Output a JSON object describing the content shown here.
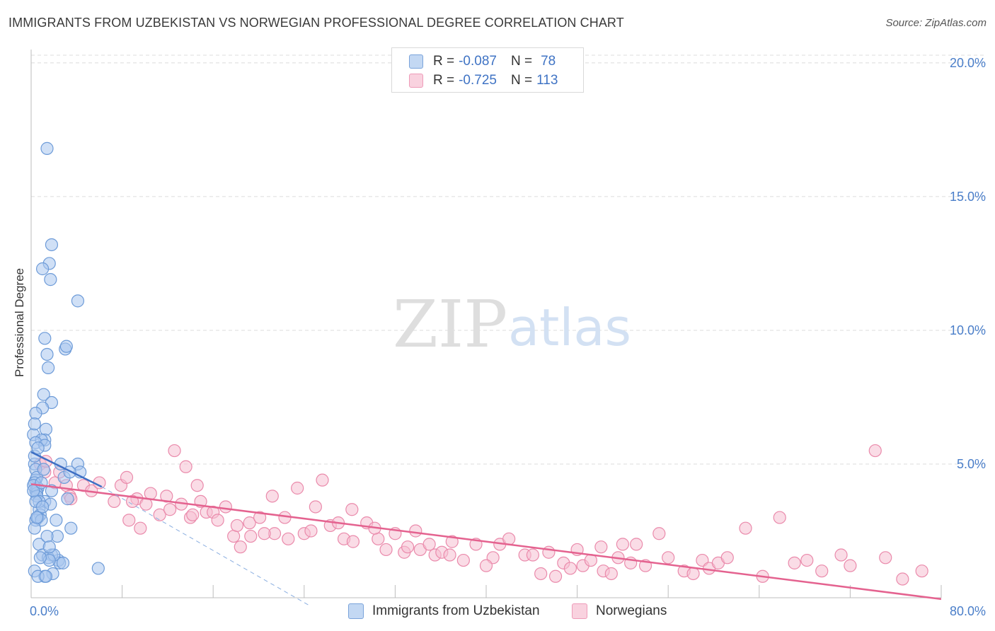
{
  "header": {
    "title": "IMMIGRANTS FROM UZBEKISTAN VS NORWEGIAN PROFESSIONAL DEGREE CORRELATION CHART",
    "source": "Source: ZipAtlas.com"
  },
  "watermark": {
    "zip": "ZIP",
    "atlas": "atlas"
  },
  "legend": {
    "rows": [
      {
        "r_label": "R =",
        "r_value": "-0.087",
        "n_label": "N =",
        "n_value": "78",
        "color": "#8fb5e6"
      },
      {
        "r_label": "R =",
        "r_value": "-0.725",
        "n_label": "N =",
        "n_value": "113",
        "color": "#f2a6bf"
      }
    ]
  },
  "colors": {
    "blue_fill": "#a9c6ee",
    "blue_stroke": "#6d9bd8",
    "blue_line": "#3d6fc4",
    "pink_fill": "#f6bfd1",
    "pink_stroke": "#ea8aab",
    "pink_line": "#e4628f",
    "grid": "#dcdcdc",
    "tick_text": "#4a7ec9"
  },
  "chart_data": {
    "type": "scatter",
    "title": "IMMIGRANTS FROM UZBEKISTAN VS NORWEGIAN PROFESSIONAL DEGREE CORRELATION CHART",
    "xlabel": "",
    "ylabel": "Professional Degree",
    "xlim": [
      0,
      80
    ],
    "ylim": [
      0,
      20.5
    ],
    "x_tick_labels": [
      "0.0%",
      "80.0%"
    ],
    "y_ticks": [
      5,
      10,
      15,
      20
    ],
    "y_tick_labels": [
      "5.0%",
      "10.0%",
      "15.0%",
      "20.0%"
    ],
    "grid": true,
    "series": [
      {
        "name": "Immigrants from Uzbekistan",
        "x": [
          1.4,
          1.8,
          1.6,
          1.0,
          1.7,
          4.1,
          1.2,
          1.4,
          3.0,
          3.1,
          1.5,
          1.1,
          1.8,
          1.0,
          0.4,
          1.3,
          1.2,
          0.2,
          0.9,
          0.3,
          0.4,
          1.2,
          0.3,
          0.4,
          0.4,
          0.5,
          4.1,
          4.3,
          0.3,
          2.6,
          2.9,
          3.4,
          0.4,
          0.5,
          0.6,
          1.8,
          0.5,
          3.2,
          1.2,
          1.7,
          0.7,
          0.8,
          0.4,
          0.6,
          0.9,
          2.2,
          3.5,
          5.9,
          2.3,
          0.7,
          1.0,
          2.4,
          2.5,
          1.8,
          1.5,
          2.0,
          1.9,
          2.8,
          1.6,
          1.2,
          0.3,
          0.8,
          0.6,
          1.3,
          0.2,
          0.5,
          0.7,
          0.4,
          0.2,
          0.9,
          1.1,
          0.3,
          0.6,
          1.0,
          1.4,
          1.6,
          0.3,
          0.5
        ],
        "y": [
          16.8,
          13.2,
          12.5,
          12.3,
          11.9,
          11.1,
          9.7,
          9.1,
          9.3,
          9.4,
          8.6,
          7.6,
          7.3,
          7.1,
          6.9,
          6.3,
          5.9,
          6.1,
          5.9,
          6.5,
          5.8,
          5.7,
          5.0,
          4.8,
          4.4,
          4.5,
          5.0,
          4.7,
          4.3,
          5.0,
          4.5,
          4.7,
          4.0,
          4.0,
          4.1,
          4.0,
          3.9,
          3.7,
          3.6,
          3.5,
          3.3,
          3.1,
          2.9,
          3.0,
          2.9,
          2.9,
          2.6,
          1.1,
          2.3,
          2.0,
          1.6,
          1.4,
          1.3,
          1.6,
          1.5,
          1.6,
          0.9,
          1.3,
          1.4,
          0.8,
          1.0,
          1.5,
          0.8,
          0.8,
          4.2,
          3.8,
          3.6,
          3.6,
          4.0,
          4.3,
          4.8,
          5.3,
          5.6,
          3.4,
          2.3,
          1.9,
          2.6,
          3.0
        ],
        "color": "#a9c6ee",
        "trendline": {
          "x": [
            0,
            6.2
          ],
          "y": [
            5.45,
            4.15
          ]
        },
        "trendline_extension": {
          "x": [
            6.2,
            24.5
          ],
          "y": [
            4.15,
            -0.3
          ]
        }
      },
      {
        "name": "Norwegians",
        "x": [
          12.6,
          13.6,
          0.8,
          1.2,
          1.3,
          2.1,
          2.5,
          3.1,
          3.4,
          3.5,
          4.6,
          5.3,
          6.0,
          7.3,
          7.9,
          8.4,
          8.6,
          9.3,
          10.5,
          10.1,
          11.9,
          11.3,
          12.2,
          13.2,
          14.0,
          14.2,
          14.9,
          15.4,
          16.0,
          16.4,
          17.8,
          18.1,
          19.2,
          19.3,
          20.1,
          21.2,
          21.4,
          22.3,
          22.6,
          24.0,
          24.6,
          25.0,
          26.3,
          27.5,
          28.3,
          28.2,
          29.5,
          30.5,
          31.2,
          32.0,
          32.8,
          33.1,
          34.2,
          35.5,
          36.1,
          37.0,
          38.0,
          39.1,
          40.6,
          41.2,
          42.0,
          43.4,
          44.1,
          45.5,
          46.8,
          47.4,
          48.0,
          48.5,
          49.2,
          50.3,
          51.0,
          51.6,
          52.7,
          53.2,
          54.0,
          55.2,
          56.0,
          57.4,
          58.2,
          59.0,
          59.6,
          60.4,
          61.2,
          62.8,
          64.3,
          65.8,
          67.1,
          68.2,
          69.5,
          71.2,
          72.0,
          74.2,
          75.1,
          76.6,
          78.3,
          8.9,
          9.6,
          14.6,
          17.1,
          18.4,
          20.5,
          23.4,
          25.6,
          27.0,
          30.2,
          33.8,
          35.0,
          36.8,
          40.0,
          44.8,
          46.1,
          50.1,
          52.0
        ],
        "y": [
          5.5,
          4.9,
          5.0,
          4.7,
          5.1,
          4.3,
          4.7,
          4.2,
          3.8,
          3.7,
          4.2,
          4.0,
          4.3,
          3.6,
          4.2,
          4.5,
          2.9,
          3.7,
          3.9,
          3.5,
          3.8,
          3.1,
          3.3,
          3.5,
          3.0,
          3.1,
          3.6,
          3.2,
          3.2,
          2.9,
          2.3,
          2.7,
          2.8,
          2.3,
          3.0,
          3.8,
          2.4,
          3.0,
          2.2,
          2.4,
          2.5,
          3.4,
          2.7,
          2.2,
          2.1,
          3.3,
          2.8,
          2.2,
          1.8,
          2.4,
          1.7,
          1.9,
          1.8,
          1.6,
          1.7,
          2.1,
          1.4,
          2.0,
          1.5,
          2.0,
          2.2,
          1.6,
          1.6,
          1.7,
          1.3,
          1.1,
          1.8,
          1.2,
          1.4,
          1.0,
          0.9,
          1.5,
          1.3,
          2.0,
          1.2,
          2.4,
          1.5,
          1.0,
          0.9,
          1.4,
          1.1,
          1.3,
          1.5,
          2.6,
          0.8,
          3.0,
          1.3,
          1.4,
          1.0,
          1.6,
          1.2,
          5.5,
          1.5,
          0.7,
          1.0,
          3.6,
          2.6,
          4.2,
          3.4,
          1.9,
          2.4,
          4.1,
          4.4,
          2.8,
          2.6,
          2.5,
          2.0,
          1.6,
          1.2,
          0.9,
          0.8,
          1.9,
          2.0
        ],
        "color": "#f6bfd1",
        "trendline": {
          "x": [
            0,
            80
          ],
          "y": [
            4.25,
            -0.05
          ]
        }
      }
    ]
  },
  "bottom_legend": {
    "items": [
      {
        "label": "Immigrants from Uzbekistan",
        "color": "#a9c6ee"
      },
      {
        "label": "Norwegians",
        "color": "#f6bfd1"
      }
    ]
  }
}
